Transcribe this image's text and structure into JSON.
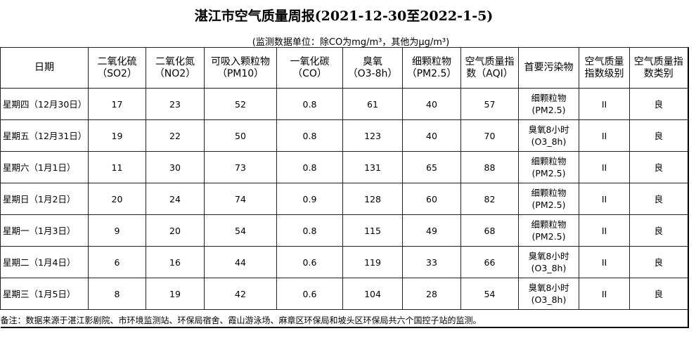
{
  "header": {
    "title": "湛江市空气质量周报(2021-12-30至2022-1-5)",
    "subtitle": "(监测数据单位：除CO为mg/m³，其他为μg/m³)"
  },
  "table": {
    "columns": [
      [
        "日期"
      ],
      [
        "二氧化硫",
        "（SO2）"
      ],
      [
        "二氧化氮",
        "（NO2）"
      ],
      [
        "可吸入颗粒物",
        "（PM10）"
      ],
      [
        "一氧化碳",
        "（CO）"
      ],
      [
        "臭氧",
        "（O3-8h）"
      ],
      [
        "细颗粒物",
        "（PM2.5）"
      ],
      [
        "空气质量指",
        "数（AQI）"
      ],
      [
        "首要污染物"
      ],
      [
        "空气质量",
        "指数级别"
      ],
      [
        "空气质量指",
        "数类别"
      ]
    ],
    "rows": [
      [
        [
          "星期四（12月30日）"
        ],
        [
          17
        ],
        [
          23
        ],
        [
          52
        ],
        [
          0.8
        ],
        [
          61
        ],
        [
          40
        ],
        [
          57
        ],
        [
          "细颗粒物",
          "(PM2.5)"
        ],
        [
          "II"
        ],
        [
          "良"
        ]
      ],
      [
        [
          "星期五（12月31日）"
        ],
        [
          19
        ],
        [
          22
        ],
        [
          50
        ],
        [
          0.8
        ],
        [
          123
        ],
        [
          40
        ],
        [
          70
        ],
        [
          "臭氧8小时",
          "(O3_8h)"
        ],
        [
          "II"
        ],
        [
          "良"
        ]
      ],
      [
        [
          "星期六（1月1日）"
        ],
        [
          11
        ],
        [
          30
        ],
        [
          73
        ],
        [
          0.8
        ],
        [
          131
        ],
        [
          65
        ],
        [
          88
        ],
        [
          "细颗粒物",
          "(PM2.5)"
        ],
        [
          "II"
        ],
        [
          "良"
        ]
      ],
      [
        [
          "星期日（1月2日）"
        ],
        [
          20
        ],
        [
          24
        ],
        [
          74
        ],
        [
          0.9
        ],
        [
          128
        ],
        [
          60
        ],
        [
          82
        ],
        [
          "细颗粒物",
          "(PM2.5)"
        ],
        [
          "II"
        ],
        [
          "良"
        ]
      ],
      [
        [
          "星期一（1月3日）"
        ],
        [
          9
        ],
        [
          20
        ],
        [
          54
        ],
        [
          0.8
        ],
        [
          115
        ],
        [
          49
        ],
        [
          68
        ],
        [
          "细颗粒物",
          "(PM2.5)"
        ],
        [
          "II"
        ],
        [
          "良"
        ]
      ],
      [
        [
          "星期二（1月4日）"
        ],
        [
          6
        ],
        [
          16
        ],
        [
          44
        ],
        [
          0.6
        ],
        [
          119
        ],
        [
          33
        ],
        [
          66
        ],
        [
          "臭氧8小时",
          "(O3_8h)"
        ],
        [
          "II"
        ],
        [
          "良"
        ]
      ],
      [
        [
          "星期三（1月5日）"
        ],
        [
          8
        ],
        [
          19
        ],
        [
          42
        ],
        [
          0.6
        ],
        [
          104
        ],
        [
          28
        ],
        [
          54
        ],
        [
          "臭氧8小时",
          "(O3_8h)"
        ],
        [
          "II"
        ],
        [
          "良"
        ]
      ]
    ],
    "note": "备注：数据来源于湛江影剧院、市环境监测站、环保局宿舍、霞山游泳场、麻章区环保局和坡头区环保局共六个国控子站的监测。"
  }
}
